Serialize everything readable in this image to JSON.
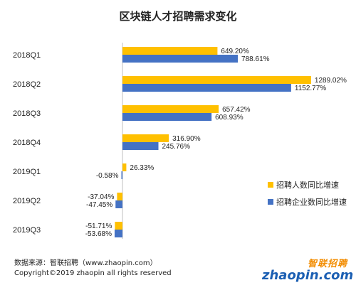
{
  "chart_data": {
    "type": "bar",
    "orientation": "horizontal",
    "title": "区块链人才招聘需求变化",
    "categories": [
      "2018Q1",
      "2018Q2",
      "2018Q3",
      "2018Q4",
      "2019Q1",
      "2019Q2",
      "2019Q3"
    ],
    "series": [
      {
        "name": "招聘人数同比增速",
        "color": "#ffc000",
        "values": [
          649.2,
          1289.02,
          657.42,
          316.9,
          26.33,
          -37.04,
          -51.71
        ],
        "labels": [
          "649.20%",
          "1289.02%",
          "657.42%",
          "316.90%",
          "26.33%",
          "-37.04%",
          "-51.71%"
        ]
      },
      {
        "name": "招聘企业数同比增速",
        "color": "#4472c4",
        "values": [
          788.61,
          1152.77,
          608.93,
          245.76,
          -0.58,
          -47.45,
          -53.68
        ],
        "labels": [
          "788.61%",
          "1152.77%",
          "608.93%",
          "245.76%",
          "-0.58%",
          "-47.45%",
          "-53.68%"
        ]
      }
    ],
    "legend_position": "right",
    "grid": false
  },
  "footer": {
    "source": "数据来源：智联招聘（www.zhaopin.com）",
    "copyright": "Copyright©2019 zhaopin all rights reserved"
  },
  "logo": {
    "text_cn": "智联招聘",
    "text_en": "zhaopin.com"
  }
}
